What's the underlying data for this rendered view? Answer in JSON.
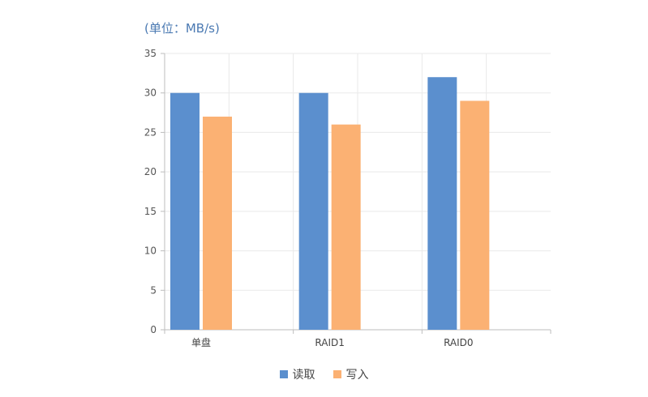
{
  "chart_data": {
    "type": "bar",
    "unit_label": "(单位：MB/s)",
    "categories": [
      "单盘",
      "RAID1",
      "RAID0"
    ],
    "series": [
      {
        "name": "读取",
        "color": "#5b8fce",
        "values": [
          30,
          30,
          32
        ]
      },
      {
        "name": "写入",
        "color": "#fbb173",
        "values": [
          27,
          26,
          29
        ]
      }
    ],
    "ylim": [
      0,
      35
    ],
    "yticks": [
      "0",
      "5",
      "10",
      "15",
      "20",
      "25",
      "30",
      "35"
    ],
    "grid": true,
    "legend_position": "bottom-center"
  }
}
